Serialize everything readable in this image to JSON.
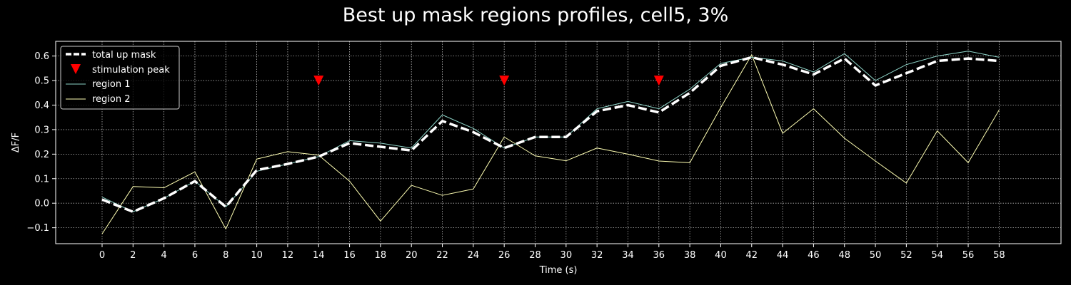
{
  "chart_data": {
    "type": "line",
    "title": "Best up mask regions profiles, cell5, 3%",
    "xlabel": "Time (s)",
    "ylabel": "ΔF/F",
    "xlim": [
      -3,
      62
    ],
    "ylim": [
      -0.165,
      0.66
    ],
    "x_ticks": [
      0,
      2,
      4,
      6,
      8,
      10,
      12,
      14,
      16,
      18,
      20,
      22,
      24,
      26,
      28,
      30,
      32,
      34,
      36,
      38,
      40,
      42,
      44,
      46,
      48,
      50,
      52,
      54,
      56,
      58
    ],
    "y_ticks": [
      -0.1,
      0.0,
      0.1,
      0.2,
      0.3,
      0.4,
      0.5,
      0.6
    ],
    "y_tick_labels": [
      "−0.1",
      "0.0",
      "0.1",
      "0.2",
      "0.3",
      "0.4",
      "0.5",
      "0.6"
    ],
    "grid": true,
    "legend_position": "upper-left",
    "x": [
      0,
      2,
      4,
      6,
      8,
      10,
      12,
      14,
      16,
      18,
      20,
      22,
      24,
      26,
      28,
      30,
      32,
      34,
      36,
      38,
      40,
      42,
      44,
      46,
      48,
      50,
      52,
      54,
      56,
      58
    ],
    "series": [
      {
        "name": "total up mask",
        "color": "#ffffff",
        "style": "dashed-thick",
        "values": [
          0.015,
          -0.035,
          0.02,
          0.09,
          -0.015,
          0.135,
          0.16,
          0.19,
          0.245,
          0.23,
          0.215,
          0.335,
          0.29,
          0.225,
          0.27,
          0.27,
          0.375,
          0.4,
          0.37,
          0.45,
          0.56,
          0.595,
          0.565,
          0.525,
          0.59,
          0.48,
          0.53,
          0.58,
          0.59,
          0.58
        ]
      },
      {
        "name": "region 1",
        "color": "#8dd3c7",
        "style": "thin",
        "values": [
          0.025,
          -0.035,
          0.02,
          0.09,
          -0.015,
          0.13,
          0.16,
          0.19,
          0.255,
          0.245,
          0.225,
          0.36,
          0.305,
          0.225,
          0.27,
          0.27,
          0.385,
          0.415,
          0.385,
          0.465,
          0.57,
          0.595,
          0.58,
          0.535,
          0.61,
          0.5,
          0.565,
          0.6,
          0.62,
          0.595
        ]
      },
      {
        "name": "region 2",
        "color": "#ffffb3",
        "style": "thin",
        "values": [
          -0.125,
          0.068,
          0.063,
          0.128,
          -0.105,
          0.18,
          0.21,
          0.196,
          0.09,
          -0.073,
          0.073,
          0.032,
          0.058,
          0.27,
          0.193,
          0.173,
          0.225,
          0.2,
          0.172,
          0.165,
          0.39,
          0.605,
          0.285,
          0.385,
          0.265,
          0.172,
          0.082,
          0.295,
          0.165,
          0.38
        ]
      }
    ],
    "markers": {
      "name": "stimulation peak",
      "color": "#ff0000",
      "shape": "triangle-down",
      "x": [
        14,
        26,
        36
      ],
      "y": [
        0.5,
        0.5,
        0.5
      ]
    }
  }
}
